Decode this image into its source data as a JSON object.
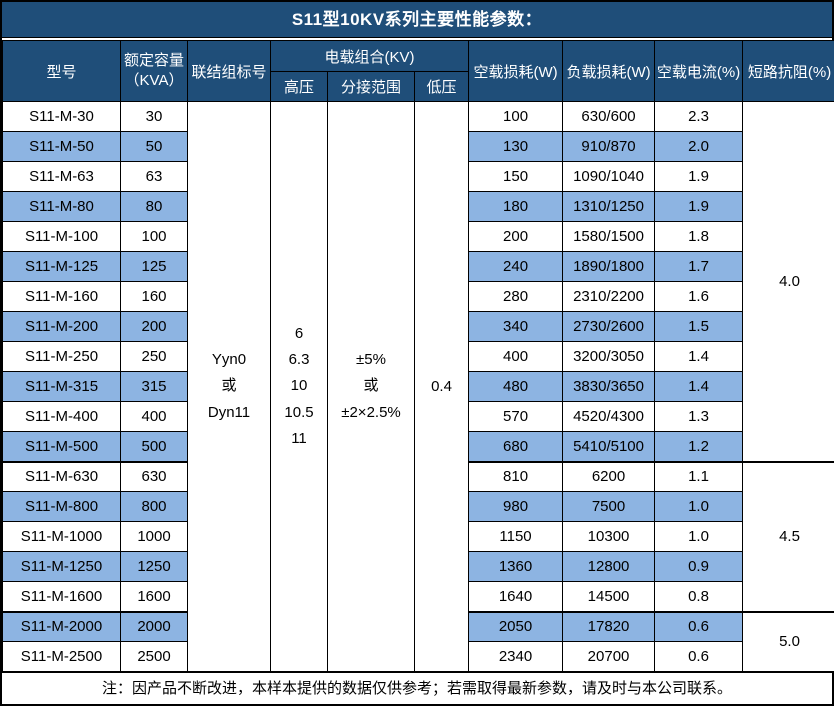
{
  "title": "S11型10KV系列主要性能参数：",
  "header": {
    "model": "型号",
    "capacity": "额定容量\n（KVA）",
    "vector_group": "联结组标号",
    "voltage_combo": "电载组合(KV)",
    "hv": "高压",
    "tap_range": "分接范围",
    "lv": "低压",
    "no_load_loss": "空载损耗(W)",
    "load_loss": "负载损耗(W)",
    "no_load_current": "空载电流(%)",
    "impedance": "短路抗阻(%)"
  },
  "merged": {
    "vector_group": "Yyn0\n或\nDyn11",
    "hv": "6\n6.3\n10\n10.5\n11",
    "tap_range": "±5%\n或\n±2×2.5%",
    "lv": "0.4"
  },
  "rows": [
    {
      "model": "S11-M-30",
      "capacity": "30",
      "no_load_loss": "100",
      "load_loss": "630/600",
      "no_load_current": "2.3"
    },
    {
      "model": "S11-M-50",
      "capacity": "50",
      "no_load_loss": "130",
      "load_loss": "910/870",
      "no_load_current": "2.0"
    },
    {
      "model": "S11-M-63",
      "capacity": "63",
      "no_load_loss": "150",
      "load_loss": "1090/1040",
      "no_load_current": "1.9"
    },
    {
      "model": "S11-M-80",
      "capacity": "80",
      "no_load_loss": "180",
      "load_loss": "1310/1250",
      "no_load_current": "1.9"
    },
    {
      "model": "S11-M-100",
      "capacity": "100",
      "no_load_loss": "200",
      "load_loss": "1580/1500",
      "no_load_current": "1.8"
    },
    {
      "model": "S11-M-125",
      "capacity": "125",
      "no_load_loss": "240",
      "load_loss": "1890/1800",
      "no_load_current": "1.7"
    },
    {
      "model": "S11-M-160",
      "capacity": "160",
      "no_load_loss": "280",
      "load_loss": "2310/2200",
      "no_load_current": "1.6"
    },
    {
      "model": "S11-M-200",
      "capacity": "200",
      "no_load_loss": "340",
      "load_loss": "2730/2600",
      "no_load_current": "1.5"
    },
    {
      "model": "S11-M-250",
      "capacity": "250",
      "no_load_loss": "400",
      "load_loss": "3200/3050",
      "no_load_current": "1.4"
    },
    {
      "model": "S11-M-315",
      "capacity": "315",
      "no_load_loss": "480",
      "load_loss": "3830/3650",
      "no_load_current": "1.4"
    },
    {
      "model": "S11-M-400",
      "capacity": "400",
      "no_load_loss": "570",
      "load_loss": "4520/4300",
      "no_load_current": "1.3"
    },
    {
      "model": "S11-M-500",
      "capacity": "500",
      "no_load_loss": "680",
      "load_loss": "5410/5100",
      "no_load_current": "1.2"
    },
    {
      "model": "S11-M-630",
      "capacity": "630",
      "no_load_loss": "810",
      "load_loss": "6200",
      "no_load_current": "1.1"
    },
    {
      "model": "S11-M-800",
      "capacity": "800",
      "no_load_loss": "980",
      "load_loss": "7500",
      "no_load_current": "1.0"
    },
    {
      "model": "S11-M-1000",
      "capacity": "1000",
      "no_load_loss": "1150",
      "load_loss": "10300",
      "no_load_current": "1.0"
    },
    {
      "model": "S11-M-1250",
      "capacity": "1250",
      "no_load_loss": "1360",
      "load_loss": "12800",
      "no_load_current": "0.9"
    },
    {
      "model": "S11-M-1600",
      "capacity": "1600",
      "no_load_loss": "1640",
      "load_loss": "14500",
      "no_load_current": "0.8"
    },
    {
      "model": "S11-M-2000",
      "capacity": "2000",
      "no_load_loss": "2050",
      "load_loss": "17820",
      "no_load_current": "0.6"
    },
    {
      "model": "S11-M-2500",
      "capacity": "2500",
      "no_load_loss": "2340",
      "load_loss": "20700",
      "no_load_current": "0.6"
    }
  ],
  "impedance_groups": [
    {
      "value": "4.0",
      "rows": 12
    },
    {
      "value": "4.5",
      "rows": 5
    },
    {
      "value": "5.0",
      "rows": 2
    }
  ],
  "note": "注：因产品不断改进，本样本提供的数据仅供参考；若需取得最新参数，请及时与本公司联系。",
  "colors": {
    "header_bg": "#1F4E79",
    "header_text": "#FFFFFF",
    "shaded_row_bg": "#8DB4E2",
    "row_bg": "#FFFFFF",
    "body_text": "#000000",
    "border": "#000000"
  }
}
